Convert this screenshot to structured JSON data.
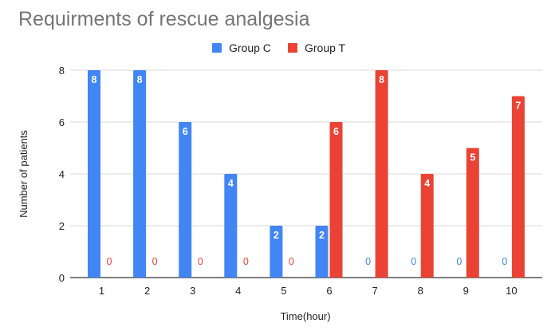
{
  "chart_data": {
    "type": "bar",
    "title": "Requirments of rescue analgesia",
    "xlabel": "Time(hour)",
    "ylabel": "Number of patients",
    "categories": [
      "1",
      "2",
      "3",
      "4",
      "5",
      "6",
      "7",
      "8",
      "9",
      "10"
    ],
    "series": [
      {
        "name": "Group C",
        "color": "#4285f4",
        "values": [
          8,
          8,
          6,
          4,
          2,
          2,
          0,
          0,
          0,
          0
        ]
      },
      {
        "name": "Group T",
        "color": "#ea4335",
        "values": [
          0,
          0,
          0,
          0,
          0,
          6,
          8,
          4,
          5,
          7
        ]
      }
    ],
    "ylim": [
      0,
      8
    ],
    "yticks": [
      0,
      2,
      4,
      6,
      8
    ],
    "grid": true,
    "legend_position": "top-center",
    "data_labels": true
  }
}
